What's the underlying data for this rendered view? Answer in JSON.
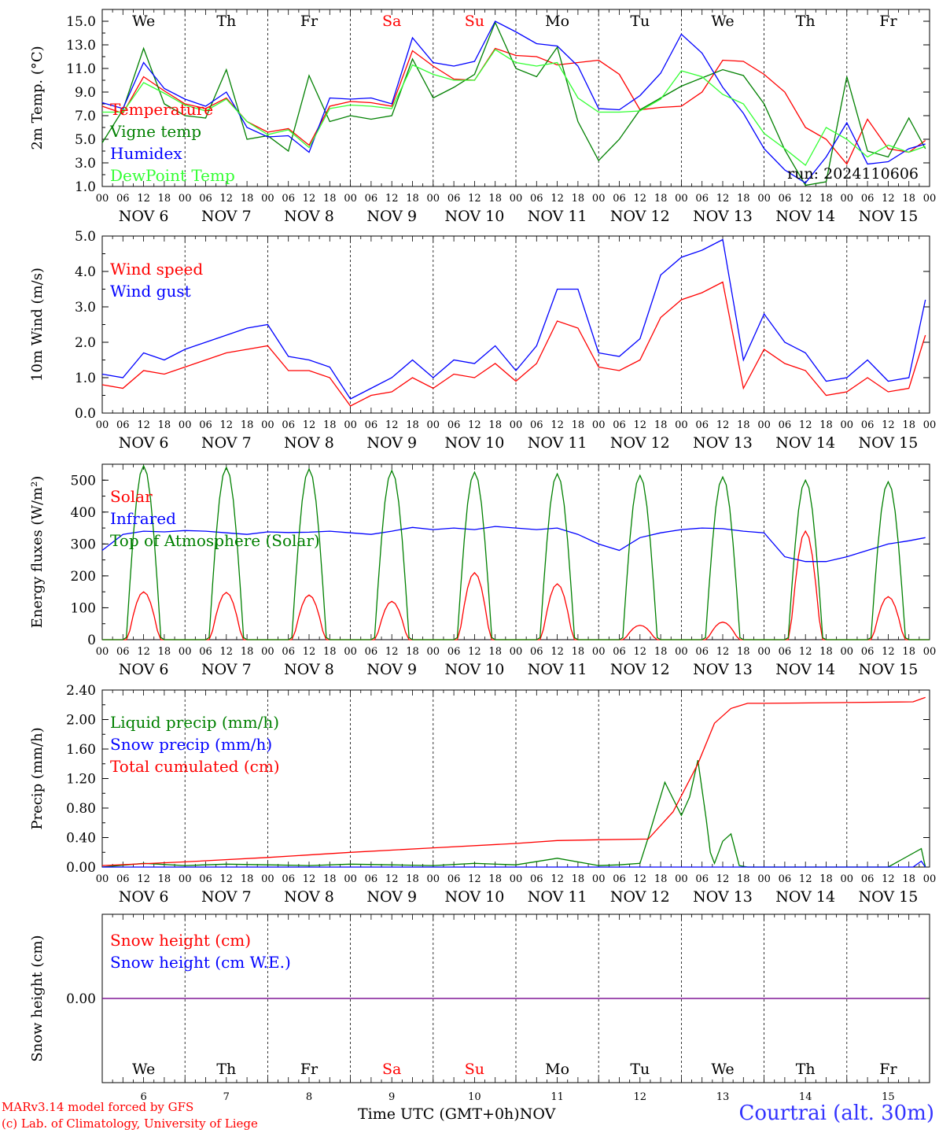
{
  "meta": {
    "run_label": "run: 2024110606",
    "x_axis_title": "Time UTC (GMT+0h)",
    "bottom_month": "NOV",
    "station": "Courtrai (alt. 30m)",
    "credit_line1": "MARv3.14 model forced by GFS",
    "credit_line2": "(c) Lab. of Climatology, University of Liege"
  },
  "days": [
    {
      "abbr": "We",
      "date": "NOV  6",
      "num": "6",
      "weekend": false
    },
    {
      "abbr": "Th",
      "date": "NOV  7",
      "num": "7",
      "weekend": false
    },
    {
      "abbr": "Fr",
      "date": "NOV  8",
      "num": "8",
      "weekend": false
    },
    {
      "abbr": "Sa",
      "date": "NOV  9",
      "num": "9",
      "weekend": true
    },
    {
      "abbr": "Su",
      "date": "NOV 10",
      "num": "10",
      "weekend": true
    },
    {
      "abbr": "Mo",
      "date": "NOV 11",
      "num": "11",
      "weekend": false
    },
    {
      "abbr": "Tu",
      "date": "NOV 12",
      "num": "12",
      "weekend": false
    },
    {
      "abbr": "We",
      "date": "NOV 13",
      "num": "13",
      "weekend": false
    },
    {
      "abbr": "Th",
      "date": "NOV 14",
      "num": "14",
      "weekend": false
    },
    {
      "abbr": "Fr",
      "date": "NOV 15",
      "num": "15",
      "weekend": false
    }
  ],
  "hour_labels": [
    "00",
    "06",
    "12",
    "18"
  ],
  "colors": {
    "weekend": "#ff0000",
    "weekday": "#000000"
  },
  "chart_data": [
    {
      "id": "temp",
      "type": "line",
      "ylabel": "2m Temp. (°C)",
      "ylim": [
        1.0,
        16.0
      ],
      "yticks": [
        1.0,
        3.0,
        5.0,
        7.0,
        9.0,
        11.0,
        13.0,
        15.0
      ],
      "tick_decimals": 1,
      "x_unit": "days since 6 Nov 00 UTC",
      "series": [
        {
          "name": "Temperature",
          "color": "#ff0000",
          "x": [
            0,
            0.25,
            0.5,
            0.75,
            1,
            1.25,
            1.5,
            1.75,
            2,
            2.25,
            2.5,
            2.75,
            3,
            3.25,
            3.5,
            3.75,
            4,
            4.25,
            4.5,
            4.75,
            5,
            5.25,
            5.5,
            5.75,
            6,
            6.25,
            6.5,
            6.75,
            7,
            7.25,
            7.5,
            7.75,
            8,
            8.25,
            8.5,
            8.75,
            9,
            9.25,
            9.5,
            9.75,
            9.95
          ],
          "y": [
            7.8,
            7.2,
            10.3,
            9.1,
            8.0,
            7.6,
            8.5,
            6.5,
            5.6,
            5.9,
            4.5,
            7.8,
            8.2,
            8.1,
            7.8,
            12.5,
            11.2,
            10.1,
            10.0,
            12.7,
            12.1,
            12.0,
            11.3,
            11.5,
            11.7,
            10.5,
            7.5,
            7.7,
            7.8,
            9.0,
            11.7,
            11.6,
            10.5,
            9.0,
            6.0,
            5.0,
            2.9,
            6.7,
            4.2,
            3.9,
            4.9
          ]
        },
        {
          "name": "Vigne temp",
          "color": "#008000",
          "x": [
            0,
            0.25,
            0.5,
            0.75,
            1,
            1.25,
            1.5,
            1.75,
            2,
            2.25,
            2.5,
            2.75,
            3,
            3.25,
            3.5,
            3.75,
            4,
            4.25,
            4.5,
            4.75,
            5,
            5.25,
            5.5,
            5.75,
            6,
            6.25,
            6.5,
            6.75,
            7,
            7.25,
            7.5,
            7.75,
            8,
            8.25,
            8.5,
            8.75,
            9,
            9.25,
            9.5,
            9.75,
            9.95
          ],
          "y": [
            4.7,
            7.5,
            12.7,
            8.0,
            7.0,
            6.8,
            10.9,
            5.0,
            5.3,
            4.0,
            10.4,
            6.5,
            7.0,
            6.7,
            7.0,
            11.8,
            8.5,
            9.4,
            10.5,
            14.9,
            11.0,
            10.3,
            12.8,
            6.5,
            3.2,
            5.0,
            7.5,
            8.5,
            9.5,
            10.2,
            10.9,
            10.4,
            8.0,
            4.1,
            1.1,
            1.4,
            10.3,
            4.0,
            3.5,
            6.8,
            4.2
          ]
        },
        {
          "name": "Humidex",
          "color": "#0000ff",
          "x": [
            0,
            0.25,
            0.5,
            0.75,
            1,
            1.25,
            1.5,
            1.75,
            2,
            2.25,
            2.5,
            2.75,
            3,
            3.25,
            3.5,
            3.75,
            4,
            4.25,
            4.5,
            4.75,
            5,
            5.25,
            5.5,
            5.75,
            6,
            6.25,
            6.5,
            6.75,
            7,
            7.25,
            7.5,
            7.75,
            8,
            8.25,
            8.5,
            8.75,
            9,
            9.25,
            9.5,
            9.75,
            9.95
          ],
          "y": [
            8.1,
            7.6,
            11.5,
            9.3,
            8.4,
            7.8,
            9.0,
            6.0,
            5.2,
            5.3,
            3.9,
            8.5,
            8.4,
            8.5,
            8.0,
            13.6,
            11.5,
            11.2,
            11.6,
            15.0,
            14.1,
            13.1,
            12.9,
            11.2,
            7.6,
            7.5,
            8.7,
            10.6,
            13.9,
            12.3,
            9.4,
            7.2,
            4.2,
            2.4,
            1.3,
            3.5,
            6.4,
            2.9,
            3.1,
            4.2,
            4.6
          ]
        },
        {
          "name": "DewPoint Temp",
          "color": "#33ff33",
          "x": [
            0,
            0.25,
            0.5,
            0.75,
            1,
            1.25,
            1.5,
            1.75,
            2,
            2.25,
            2.5,
            2.75,
            3,
            3.25,
            3.5,
            3.75,
            4,
            4.25,
            4.5,
            4.75,
            5,
            5.25,
            5.5,
            5.75,
            6,
            6.25,
            6.5,
            6.75,
            7,
            7.25,
            7.5,
            7.75,
            8,
            8.25,
            8.5,
            8.75,
            9,
            9.25,
            9.5,
            9.75,
            9.95
          ],
          "y": [
            7.3,
            7.3,
            9.8,
            8.9,
            7.9,
            7.4,
            8.4,
            6.5,
            5.4,
            5.8,
            4.3,
            7.6,
            7.9,
            7.8,
            7.6,
            11.3,
            10.5,
            10.0,
            10.0,
            12.6,
            11.5,
            11.2,
            11.5,
            8.5,
            7.3,
            7.3,
            7.4,
            8.4,
            10.8,
            10.3,
            8.8,
            8.0,
            5.5,
            4.2,
            2.8,
            6.0,
            5.0,
            3.5,
            4.5,
            3.9,
            4.4
          ]
        }
      ]
    },
    {
      "id": "wind",
      "type": "line",
      "ylabel": "10m Wind (m/s)",
      "ylim": [
        0.0,
        5.0
      ],
      "yticks": [
        0.0,
        1.0,
        2.0,
        3.0,
        4.0,
        5.0
      ],
      "tick_decimals": 1,
      "series": [
        {
          "name": "Wind speed",
          "color": "#ff0000",
          "x": [
            0,
            0.25,
            0.5,
            0.75,
            1,
            1.25,
            1.5,
            1.75,
            2,
            2.25,
            2.5,
            2.75,
            3,
            3.25,
            3.5,
            3.75,
            4,
            4.25,
            4.5,
            4.75,
            5,
            5.25,
            5.5,
            5.75,
            6,
            6.25,
            6.5,
            6.75,
            7,
            7.25,
            7.5,
            7.75,
            8,
            8.25,
            8.5,
            8.75,
            9,
            9.25,
            9.5,
            9.75,
            9.95
          ],
          "y": [
            0.8,
            0.7,
            1.2,
            1.1,
            1.3,
            1.5,
            1.7,
            1.8,
            1.9,
            1.2,
            1.2,
            1.0,
            0.2,
            0.5,
            0.6,
            1.0,
            0.7,
            1.1,
            1.0,
            1.4,
            0.9,
            1.4,
            2.6,
            2.4,
            1.3,
            1.2,
            1.5,
            2.7,
            3.2,
            3.4,
            3.7,
            0.7,
            1.8,
            1.4,
            1.2,
            0.5,
            0.6,
            1.0,
            0.6,
            0.7,
            2.2
          ]
        },
        {
          "name": "Wind gust",
          "color": "#0000ff",
          "x": [
            0,
            0.25,
            0.5,
            0.75,
            1,
            1.25,
            1.5,
            1.75,
            2,
            2.25,
            2.5,
            2.75,
            3,
            3.25,
            3.5,
            3.75,
            4,
            4.25,
            4.5,
            4.75,
            5,
            5.25,
            5.5,
            5.75,
            6,
            6.25,
            6.5,
            6.75,
            7,
            7.25,
            7.5,
            7.75,
            8,
            8.25,
            8.5,
            8.75,
            9,
            9.25,
            9.5,
            9.75,
            9.95
          ],
          "y": [
            1.1,
            1.0,
            1.7,
            1.5,
            1.8,
            2.0,
            2.2,
            2.4,
            2.5,
            1.6,
            1.5,
            1.3,
            0.4,
            0.7,
            1.0,
            1.5,
            1.0,
            1.5,
            1.4,
            1.9,
            1.2,
            1.9,
            3.5,
            3.5,
            1.7,
            1.6,
            2.1,
            3.9,
            4.4,
            4.6,
            4.9,
            1.5,
            2.8,
            2.0,
            1.7,
            0.9,
            1.0,
            1.5,
            0.9,
            1.0,
            3.2
          ]
        }
      ]
    },
    {
      "id": "energy",
      "type": "line",
      "ylabel": "Energy fluxes (W/m²)",
      "ylim": [
        0,
        550
      ],
      "yticks": [
        0,
        100,
        200,
        300,
        400,
        500
      ],
      "tick_decimals": 0,
      "series": [
        {
          "name": "Solar",
          "color": "#ff0000",
          "peaks": [
            150,
            148,
            140,
            120,
            210,
            175,
            45,
            55,
            340,
            135
          ]
        },
        {
          "name": "Infrared",
          "color": "#0000ff",
          "x": [
            0,
            0.25,
            0.5,
            0.75,
            1,
            1.25,
            1.5,
            1.75,
            2,
            2.25,
            2.5,
            2.75,
            3,
            3.25,
            3.5,
            3.75,
            4,
            4.25,
            4.5,
            4.75,
            5,
            5.25,
            5.5,
            5.75,
            6,
            6.25,
            6.5,
            6.75,
            7,
            7.25,
            7.5,
            7.75,
            8,
            8.25,
            8.5,
            8.75,
            9,
            9.25,
            9.5,
            9.75,
            9.95
          ],
          "y": [
            280,
            330,
            340,
            338,
            342,
            340,
            335,
            330,
            338,
            336,
            337,
            340,
            335,
            330,
            340,
            352,
            345,
            350,
            345,
            355,
            350,
            345,
            350,
            330,
            300,
            280,
            320,
            335,
            345,
            350,
            348,
            340,
            335,
            260,
            245,
            245,
            260,
            280,
            300,
            310,
            320
          ]
        },
        {
          "name": "Top of Atmosphere (Solar)",
          "color": "#008000",
          "peaks": [
            545,
            540,
            535,
            530,
            525,
            520,
            515,
            510,
            500,
            495
          ]
        }
      ]
    },
    {
      "id": "precip",
      "type": "line",
      "ylabel": "Precip (mm/h)",
      "ylim": [
        0.0,
        2.4
      ],
      "yticks": [
        0.0,
        0.4,
        0.8,
        1.2,
        1.6,
        2.0,
        2.4
      ],
      "tick_decimals": 2,
      "series": [
        {
          "name": "Liquid precip (mm/h)",
          "color": "#008000",
          "x": [
            0,
            0.5,
            1,
            1.5,
            2,
            2.5,
            3,
            3.5,
            4,
            4.5,
            5,
            5.5,
            6,
            6.25,
            6.5,
            6.6,
            6.8,
            7.0,
            7.1,
            7.2,
            7.3,
            7.35,
            7.4,
            7.5,
            7.6,
            7.7,
            7.8,
            8.0,
            8.5,
            9,
            9.5,
            9.9,
            9.95
          ],
          "y": [
            0.0,
            0.05,
            0.02,
            0.04,
            0.03,
            0.02,
            0.04,
            0.03,
            0.02,
            0.05,
            0.03,
            0.12,
            0.02,
            0.03,
            0.05,
            0.4,
            1.15,
            0.7,
            0.95,
            1.45,
            0.65,
            0.2,
            0.05,
            0.35,
            0.45,
            0.02,
            0.0,
            0.0,
            0.0,
            0.0,
            0.0,
            0.25,
            0.0
          ]
        },
        {
          "name": "Snow precip (mm/h)",
          "color": "#0000ff",
          "x": [
            0,
            9.8,
            9.9,
            9.95
          ],
          "y": [
            0.0,
            0.0,
            0.08,
            0.0
          ]
        },
        {
          "name": "Total cumulated (cm)",
          "color": "#ff0000",
          "x": [
            0,
            1,
            2,
            3,
            4,
            5,
            5.5,
            6,
            6.6,
            6.9,
            7.2,
            7.4,
            7.6,
            7.8,
            8,
            9,
            9.8,
            9.95
          ],
          "y": [
            0.02,
            0.07,
            0.13,
            0.2,
            0.26,
            0.32,
            0.36,
            0.37,
            0.38,
            0.75,
            1.4,
            1.95,
            2.15,
            2.22,
            2.22,
            2.23,
            2.24,
            2.3
          ]
        }
      ]
    },
    {
      "id": "snow",
      "type": "line",
      "ylabel": "Snow height (cm)",
      "ylim": [
        -1,
        1
      ],
      "yticks": [
        0.0
      ],
      "tick_decimals": 2,
      "series": [
        {
          "name": "Snow height (cm)",
          "color": "#ff0000",
          "x": [
            0,
            9.95
          ],
          "y": [
            0.0,
            0.0
          ]
        },
        {
          "name": "Snow height (cm W.E.)",
          "color": "#0000ff",
          "x": [
            0,
            9.95
          ],
          "y": [
            0.0,
            0.0
          ]
        }
      ]
    }
  ]
}
